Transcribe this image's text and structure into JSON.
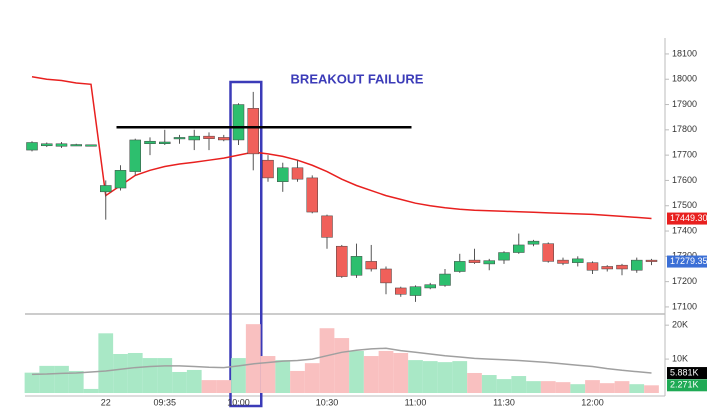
{
  "chart_data": {
    "type": "candlestick",
    "annotation": "BREAKOUT FAILURE",
    "categories": [
      null,
      null,
      null,
      null,
      null,
      "22",
      null,
      null,
      null,
      "09:35",
      null,
      null,
      null,
      null,
      "10:00",
      null,
      null,
      null,
      null,
      null,
      "10:30",
      null,
      null,
      null,
      null,
      null,
      "11:00",
      null,
      null,
      null,
      null,
      null,
      "11:30",
      null,
      null,
      null,
      null,
      null,
      "12:00",
      null,
      null,
      null,
      null
    ],
    "open": [
      17720,
      17737,
      17735,
      17740,
      17740,
      17555,
      17570,
      17635,
      17745,
      17745,
      17765,
      17760,
      17775,
      17770,
      17760,
      17885,
      17680,
      17595,
      17650,
      17610,
      17460,
      17340,
      17225,
      17280,
      17250,
      17175,
      17145,
      17175,
      17185,
      17240,
      17285,
      17270,
      17285,
      17315,
      17348,
      17350,
      17285,
      17275,
      17275,
      17260,
      17265,
      17245,
      17285
    ],
    "high": [
      17755,
      17750,
      17752,
      17745,
      17742,
      17600,
      17660,
      17765,
      17770,
      17800,
      17780,
      17800,
      17790,
      17780,
      17905,
      17950,
      17700,
      17670,
      17680,
      17620,
      17465,
      17345,
      17350,
      17345,
      17260,
      17180,
      17185,
      17195,
      17250,
      17310,
      17330,
      17290,
      17320,
      17390,
      17365,
      17355,
      17295,
      17300,
      17280,
      17265,
      17270,
      17295,
      17290
    ],
    "low": [
      17715,
      17732,
      17728,
      17736,
      17738,
      17445,
      17560,
      17620,
      17700,
      17740,
      17745,
      17720,
      17720,
      17755,
      17740,
      17640,
      17595,
      17555,
      17595,
      17470,
      17330,
      17215,
      17215,
      17240,
      17150,
      17140,
      17120,
      17170,
      17180,
      17235,
      17270,
      17245,
      17270,
      17310,
      17340,
      17275,
      17265,
      17260,
      17230,
      17240,
      17225,
      17235,
      17265
    ],
    "close": [
      17750,
      17745,
      17745,
      17742,
      17741,
      17580,
      17640,
      17760,
      17755,
      17752,
      17770,
      17775,
      17765,
      17760,
      17900,
      17705,
      17610,
      17650,
      17605,
      17475,
      17375,
      17220,
      17300,
      17250,
      17195,
      17150,
      17180,
      17188,
      17230,
      17280,
      17275,
      17283,
      17315,
      17345,
      17360,
      17280,
      17272,
      17290,
      17245,
      17250,
      17250,
      17285,
      17279.35
    ],
    "volume": [
      6,
      8,
      8,
      6.5,
      1.2,
      17.6,
      11.5,
      11.8,
      10.3,
      10.3,
      6.2,
      6.8,
      3.8,
      3.8,
      10.3,
      20.3,
      10.9,
      9.7,
      6.5,
      8.8,
      19.1,
      16.2,
      12.4,
      10.9,
      12.4,
      11.8,
      9.7,
      9.4,
      9.1,
      9.4,
      5.9,
      5.3,
      4.1,
      5,
      3.5,
      3.5,
      3.2,
      2.6,
      3.8,
      2.9,
      3.5,
      2.6,
      2.271
    ],
    "moving_average": [
      18010,
      18000,
      17995,
      17985,
      17980,
      17540,
      17580,
      17620,
      17640,
      17655,
      17665,
      17672,
      17680,
      17688,
      17700,
      17712,
      17705,
      17695,
      17680,
      17660,
      17635,
      17605,
      17580,
      17560,
      17540,
      17525,
      17510,
      17500,
      17492,
      17486,
      17482,
      17480,
      17478,
      17476,
      17474,
      17472,
      17470,
      17468,
      17466,
      17462,
      17458,
      17454,
      17449.3
    ],
    "volume_average": [
      5.5,
      5.6,
      5.8,
      5.9,
      6.2,
      6.5,
      7,
      7.5,
      7.8,
      8,
      8,
      7.8,
      7.6,
      7.5,
      8,
      8.6,
      9,
      9.4,
      9.6,
      10,
      11,
      12,
      12.6,
      13,
      13.2,
      12.5,
      12,
      11.5,
      11,
      10.6,
      10.2,
      10,
      9.8,
      9.6,
      9.3,
      9,
      8.6,
      8.2,
      7.8,
      7.2,
      6.7,
      6.3,
      5.881
    ],
    "up_color": "#2dbf6e",
    "down_color": "#f0605a",
    "volume_up_color": "#a9e8c6",
    "volume_down_color": "#f9c0c0",
    "ma_color": "#e8201f",
    "volume_ma_color": "#a0a0a0",
    "ylim": [
      17076,
      18163
    ],
    "yticks": [
      17100,
      17200,
      17300,
      17400,
      17500,
      17600,
      17700,
      17800,
      17900,
      18000,
      18100
    ],
    "volume_ylim": [
      0,
      23
    ],
    "volume_ticks": [
      {
        "value": 10,
        "label": "10K"
      },
      {
        "value": 20,
        "label": "20K"
      }
    ],
    "price_tags": [
      {
        "value": 17449.3,
        "label": "17449.30",
        "color": "#e8201f"
      },
      {
        "value": 17279.35,
        "label": "17279.35",
        "color": "#3b6fd6"
      }
    ],
    "volume_tags": [
      {
        "value": 5.881,
        "label": "5.881K",
        "color": "#000000"
      },
      {
        "value": 2.271,
        "label": "2.271K",
        "color": "#1faa55"
      }
    ],
    "resistance_line": {
      "value": 17810,
      "start": 6,
      "end": 26
    },
    "highlight": {
      "start": 14,
      "end": 15
    }
  }
}
